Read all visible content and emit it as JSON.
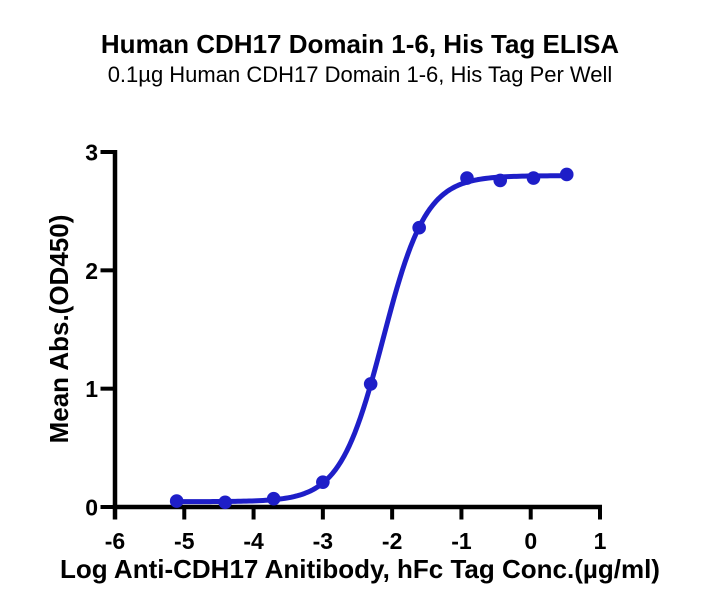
{
  "chart_data": {
    "type": "line",
    "title": "Human CDH17 Domain 1-6, His Tag ELISA",
    "subtitle": "0.1µg Human CDH17 Domain 1-6, His Tag Per Well",
    "xlabel": "Log Anti-CDH17 Anitibody, hFc Tag Conc.(µg/ml)",
    "ylabel": "Mean Abs.(OD450)",
    "xlim": [
      -6,
      1
    ],
    "ylim": [
      0,
      3
    ],
    "x_ticks": [
      -6,
      -5,
      -4,
      -3,
      -2,
      -1,
      0,
      1
    ],
    "y_ticks": [
      0,
      1,
      2,
      3
    ],
    "grid": false,
    "legend": "none",
    "background_color": "#ffffff",
    "axis_color": "#000000",
    "text_color": "#000000",
    "series": [
      {
        "name": "Anti-CDH17 Antibody, hFc Tag",
        "marker": "circle",
        "color": "#1e1ec8",
        "x": [
          -5.11,
          -4.41,
          -3.71,
          -3.0,
          -2.31,
          -1.61,
          -0.92,
          -0.44,
          0.04,
          0.52
        ],
        "y": [
          0.05,
          0.04,
          0.07,
          0.21,
          1.04,
          2.36,
          2.78,
          2.76,
          2.78,
          2.81
        ],
        "fit_4pl": {
          "bottom": 0.045,
          "top": 2.8,
          "log_ec50": -2.13,
          "hill": 1.4
        }
      }
    ]
  }
}
